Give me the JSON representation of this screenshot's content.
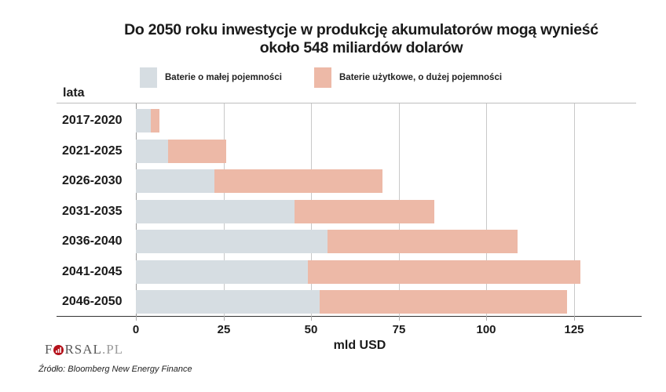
{
  "title_line1": "Do 2050 roku inwestycje w produkcję akumulatorów mogą wynieść",
  "title_line2": "około 548 miliardów dolarów",
  "legend": [
    {
      "label": "Baterie o małej pojemności",
      "color": "#d6dde2"
    },
    {
      "label": "Baterie użytkowe, o dużej pojemności",
      "color": "#edb9a7"
    }
  ],
  "y_axis_title": "lata",
  "x_axis_title": "mld USD",
  "x_ticks": [
    "0",
    "25",
    "50",
    "75",
    "100",
    "125"
  ],
  "logo": {
    "main": "F",
    "rest": "RSAL",
    "suffix": ".PL"
  },
  "source": "Źródło: Bloomberg New Energy Finance",
  "chart_data": {
    "type": "bar",
    "orientation": "horizontal",
    "stacked": true,
    "title": "Do 2050 roku inwestycje w produkcję akumulatorów mogą wynieść około 548 miliardów dolarów",
    "xlabel": "mld USD",
    "ylabel": "lata",
    "xlim": [
      0,
      145
    ],
    "x_ticks": [
      0,
      25,
      50,
      75,
      100,
      125
    ],
    "grid": "vertical",
    "legend_position": "top",
    "categories": [
      "2017-2020",
      "2021-2025",
      "2026-2030",
      "2031-2035",
      "2036-2040",
      "2041-2045",
      "2046-2050"
    ],
    "series": [
      {
        "name": "Baterie o małej pojemności",
        "color": "#d6dde2",
        "values": [
          4.3,
          9.3,
          22.4,
          45.4,
          54.7,
          49.1,
          52.5
        ]
      },
      {
        "name": "Baterie użytkowe, o dużej pojemności",
        "color": "#edb9a7",
        "values": [
          2.5,
          16.5,
          48.0,
          39.8,
          54.2,
          77.9,
          70.6
        ]
      }
    ],
    "totals": [
      6.8,
      25.8,
      70.4,
      85.2,
      108.9,
      127.0,
      123.1
    ]
  }
}
